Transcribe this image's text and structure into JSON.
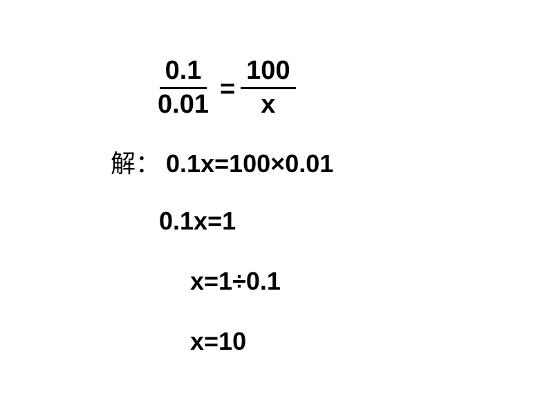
{
  "equation": {
    "left_numerator": "0.1",
    "left_denominator": "0.01",
    "equals": "=",
    "right_numerator": "100",
    "right_denominator": "x"
  },
  "solution": {
    "label": "解：",
    "step1": "0.1x=100×0.01",
    "step2": "0.1x=1",
    "step3": "x=1÷0.1",
    "step4": "x=10"
  },
  "style": {
    "text_color": "#000000",
    "background_color": "#ffffff",
    "bold_font": "Arial",
    "label_font": "SimSun",
    "equation_fontsize": 38,
    "step_fontsize": 36
  }
}
